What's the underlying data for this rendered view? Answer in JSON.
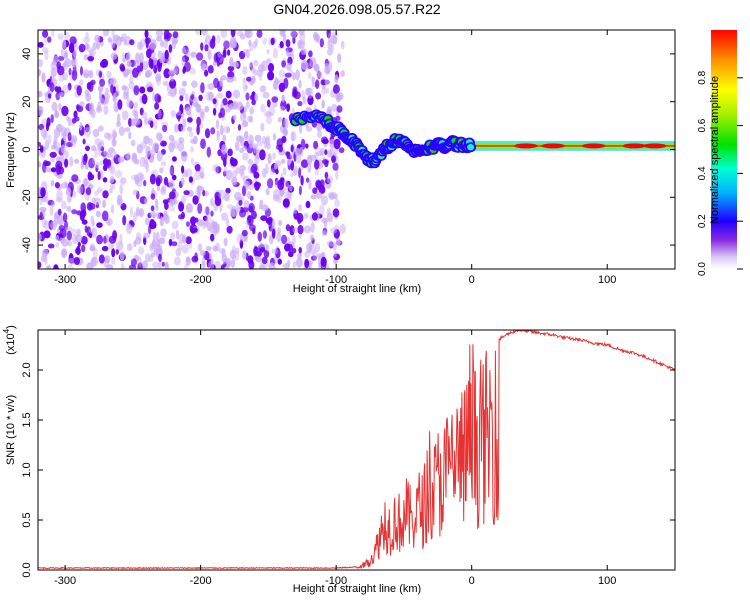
{
  "title": "GN04.2026.098.05.57.R22",
  "colors": {
    "spectrum_noise_dark": "#6a00ee",
    "spectrum_noise_light": "#c9a8f7",
    "snr_line": "#e53232",
    "axis": "#000000"
  },
  "chart_data": [
    {
      "type": "heatmap",
      "title": "",
      "xlabel": "Height of straight line (km)",
      "ylabel": "Frequency (Hz)",
      "xlim": [
        -320,
        150
      ],
      "ylim": [
        -50,
        50
      ],
      "xticks": [
        -300,
        -200,
        -100,
        0,
        100
      ],
      "yticks": [
        -40,
        -20,
        0,
        20,
        40
      ],
      "noise_region_x": [
        -320,
        -100
      ],
      "signal_track": [
        {
          "x": -130,
          "y": 13
        },
        {
          "x": -120,
          "y": 14
        },
        {
          "x": -112,
          "y": 13
        },
        {
          "x": -105,
          "y": 11
        },
        {
          "x": -100,
          "y": 9
        },
        {
          "x": -95,
          "y": 7
        },
        {
          "x": -90,
          "y": 5
        },
        {
          "x": -85,
          "y": 2
        },
        {
          "x": -80,
          "y": -2
        },
        {
          "x": -75,
          "y": -5
        },
        {
          "x": -70,
          "y": -4
        },
        {
          "x": -65,
          "y": 0
        },
        {
          "x": -60,
          "y": 2
        },
        {
          "x": -55,
          "y": 4
        },
        {
          "x": -50,
          "y": 3
        },
        {
          "x": -45,
          "y": 0
        },
        {
          "x": -40,
          "y": -1
        },
        {
          "x": -35,
          "y": 0
        },
        {
          "x": -30,
          "y": 1
        },
        {
          "x": -25,
          "y": 2
        },
        {
          "x": -20,
          "y": 1
        },
        {
          "x": -15,
          "y": 3
        },
        {
          "x": -10,
          "y": 2
        },
        {
          "x": -5,
          "y": 2
        },
        {
          "x": 0,
          "y": 2
        },
        {
          "x": 10,
          "y": 1.5
        },
        {
          "x": 30,
          "y": 1.5
        },
        {
          "x": 60,
          "y": 1.5
        },
        {
          "x": 100,
          "y": 1.5
        },
        {
          "x": 150,
          "y": 1.5
        }
      ],
      "colorbar": {
        "label": "Normalized spectral amplitude",
        "range": [
          0,
          1
        ],
        "ticks": [
          0.0,
          0.2,
          0.4,
          0.6,
          0.8
        ],
        "tick_labels": [
          "0.0",
          "0.2",
          "0.4",
          "0.6",
          "0.8"
        ],
        "colormap": [
          "#ffffff",
          "#d9c8f5",
          "#8a2be2",
          "#1e00ff",
          "#00b4ff",
          "#00ffd2",
          "#00e100",
          "#aaf000",
          "#ffff00",
          "#ff9600",
          "#ff0000"
        ]
      }
    },
    {
      "type": "line",
      "title": "",
      "xlabel": "Height of straight line (km)",
      "ylabel": "SNR (10 * v/v)",
      "multiplier_label": "(x10",
      "multiplier_exp": "4",
      "multiplier_close": ")",
      "xlim": [
        -320,
        150
      ],
      "ylim": [
        0,
        2.4
      ],
      "xticks": [
        -300,
        -200,
        -100,
        0,
        100
      ],
      "yticks": [
        0.0,
        0.5,
        1.0,
        1.5,
        2.0
      ],
      "ytick_labels": [
        "0.0",
        "0.5",
        "1.0",
        "1.5",
        "2.0"
      ],
      "series": [
        {
          "name": "SNR",
          "x": [
            -320,
            -250,
            -200,
            -150,
            -100,
            -85,
            -78,
            -72,
            -68,
            -64,
            -60,
            -56,
            -52,
            -48,
            -44,
            -40,
            -36,
            -32,
            -28,
            -24,
            -20,
            -16,
            -12,
            -8,
            -4,
            0,
            5,
            10,
            15,
            20,
            25,
            30,
            35,
            40,
            45,
            50,
            60,
            70,
            80,
            90,
            100,
            110,
            120,
            130,
            140,
            150
          ],
          "y": [
            0.02,
            0.02,
            0.02,
            0.02,
            0.02,
            0.03,
            0.1,
            0.25,
            0.55,
            0.8,
            0.7,
            0.85,
            0.75,
            0.95,
            0.8,
            1.0,
            1.05,
            1.2,
            1.3,
            1.5,
            1.55,
            1.7,
            1.8,
            1.85,
            1.95,
            2.05,
            2.1,
            2.2,
            2.25,
            2.3,
            2.35,
            2.38,
            2.4,
            2.39,
            2.38,
            2.37,
            2.35,
            2.32,
            2.3,
            2.27,
            2.25,
            2.2,
            2.17,
            2.12,
            2.06,
            2.0
          ]
        }
      ]
    }
  ]
}
